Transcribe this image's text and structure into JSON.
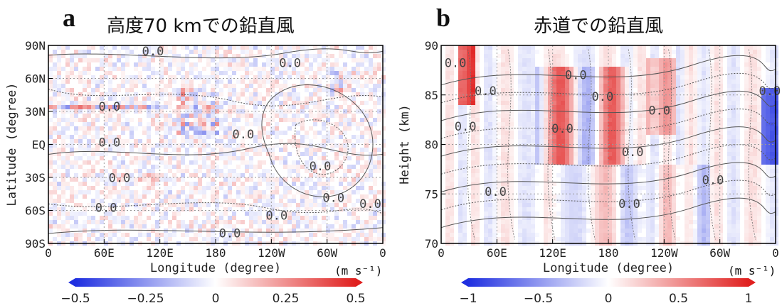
{
  "chart_data": [
    {
      "panel_letter": "a",
      "type": "heatmap",
      "title": "高度70 kmでの鉛直風",
      "xlabel": "Longitude (degree)",
      "ylabel": "Latitude (degree)",
      "x_ticks": [
        "0",
        "60E",
        "120E",
        "180",
        "120W",
        "60W",
        "0"
      ],
      "y_ticks": [
        "90N",
        "60N",
        "30N",
        "EQ",
        "30S",
        "60S",
        "90S"
      ],
      "contour_labels": [
        "0.0",
        "0.0",
        "0.0",
        "0.0",
        "0.0",
        "0.0",
        "0.0",
        "0.0",
        "0.0",
        "0.0",
        "0.0",
        "0.0"
      ],
      "colorbar": {
        "ticks": [
          "−0.5",
          "−0.25",
          "0",
          "0.25",
          "0.5"
        ],
        "range": [
          -0.5,
          0.5
        ],
        "unit": "(m s⁻¹)"
      },
      "grid": true,
      "colormap": {
        "neg": "#1f2fe0",
        "zero": "#ffffff",
        "pos": "#e0201f"
      }
    },
    {
      "panel_letter": "b",
      "type": "heatmap",
      "title": "赤道での鉛直風",
      "xlabel": "Longitude (degree)",
      "ylabel": "Height (km)",
      "x_ticks": [
        "0",
        "60E",
        "120E",
        "180",
        "120W",
        "60W",
        "0"
      ],
      "y_ticks": [
        "90",
        "85",
        "80",
        "75",
        "70"
      ],
      "contour_labels": [
        "0.0",
        "0.0",
        "0.0",
        "0.0",
        "0.0",
        "0.0",
        "0.0",
        "0.0",
        "0.0",
        "0.0",
        "0.0",
        "0.0"
      ],
      "colorbar": {
        "ticks": [
          "−1",
          "−0.5",
          "0",
          "0.5",
          "1"
        ],
        "range": [
          -1,
          1
        ],
        "unit": "(m s⁻¹)"
      },
      "grid": true,
      "colormap": {
        "neg": "#1f2fe0",
        "zero": "#ffffff",
        "pos": "#e0201f"
      }
    }
  ]
}
